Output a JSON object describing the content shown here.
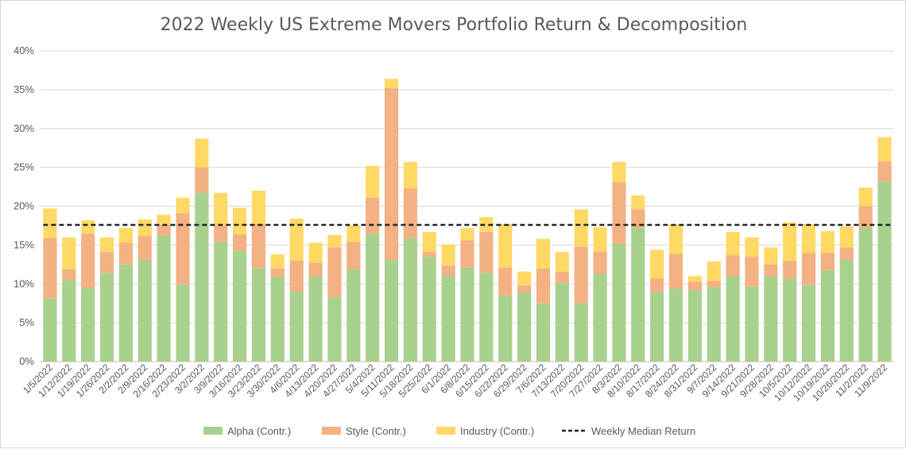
{
  "chart_data": {
    "type": "bar",
    "stacked": true,
    "title": "2022 Weekly US Extreme Movers Portfolio Return & Decomposition",
    "xlabel": "",
    "ylabel": "",
    "ylim": [
      0,
      40
    ],
    "yticks": [
      "0%",
      "5%",
      "10%",
      "15%",
      "20%",
      "25%",
      "30%",
      "35%",
      "40%"
    ],
    "grid": true,
    "legend_position": "bottom",
    "colors": {
      "alpha": "#a9d18e",
      "style": "#f4b183",
      "industry": "#ffd966",
      "median": "#262626"
    },
    "categories": [
      "1/5/2022",
      "1/12/2022",
      "1/19/2022",
      "1/26/2022",
      "2/2/2022",
      "2/9/2022",
      "2/16/2022",
      "2/23/2022",
      "3/2/2022",
      "3/9/2022",
      "3/16/2022",
      "3/23/2022",
      "3/30/2022",
      "4/6/2022",
      "4/13/2022",
      "4/20/2022",
      "4/27/2022",
      "5/4/2022",
      "5/11/2022",
      "5/18/2022",
      "5/25/2022",
      "6/1/2022",
      "6/8/2022",
      "6/15/2022",
      "6/22/2022",
      "6/29/2022",
      "7/6/2022",
      "7/13/2022",
      "7/20/2022",
      "7/27/2022",
      "8/3/2022",
      "8/10/2022",
      "8/17/2022",
      "8/24/2022",
      "8/31/2022",
      "9/7/2022",
      "9/14/2022",
      "9/21/2022",
      "9/28/2022",
      "10/5/2022",
      "10/12/2022",
      "10/19/2022",
      "10/26/2022",
      "11/2/2022",
      "11/9/2022"
    ],
    "series": [
      {
        "name": "Alpha (Contr.)",
        "values": [
          8.1,
          10.5,
          9.5,
          11.4,
          12.5,
          13.1,
          16.2,
          9.9,
          21.7,
          15.4,
          14.3,
          12.0,
          10.9,
          9.0,
          11.0,
          8.3,
          11.9,
          16.5,
          13.1,
          15.9,
          13.5,
          11.0,
          12.1,
          11.4,
          8.5,
          8.9,
          7.5,
          10.1,
          7.5,
          11.3,
          15.2,
          17.2,
          9.0,
          9.4,
          9.2,
          9.6,
          11.0,
          9.7,
          11.0,
          10.7,
          9.9,
          11.8,
          13.1,
          17.2,
          23.2
        ]
      },
      {
        "name": "Style (Contr.)",
        "values": [
          7.8,
          1.4,
          7.0,
          2.7,
          2.8,
          3.1,
          1.4,
          9.2,
          3.3,
          2.1,
          2.1,
          5.7,
          1.1,
          4.0,
          1.7,
          6.4,
          3.5,
          4.6,
          22.1,
          6.4,
          0.6,
          1.4,
          3.5,
          5.3,
          3.6,
          0.9,
          4.5,
          1.5,
          7.3,
          2.9,
          7.9,
          2.4,
          1.7,
          4.5,
          1.1,
          0.8,
          2.7,
          3.8,
          1.5,
          2.3,
          4.1,
          2.2,
          1.6,
          2.8,
          2.6
        ]
      },
      {
        "name": "Industry (Contr.)",
        "values": [
          3.8,
          4.1,
          1.7,
          1.9,
          1.9,
          2.1,
          1.3,
          2.0,
          3.7,
          4.2,
          3.4,
          4.3,
          1.8,
          5.4,
          2.6,
          1.6,
          2.1,
          4.1,
          1.2,
          3.4,
          2.6,
          2.7,
          1.6,
          1.9,
          5.6,
          1.8,
          3.8,
          2.5,
          4.8,
          3.1,
          2.6,
          1.8,
          3.7,
          3.8,
          0.7,
          2.5,
          3.0,
          2.5,
          2.2,
          4.9,
          3.7,
          2.8,
          2.7,
          2.4,
          3.1
        ]
      }
    ],
    "median": {
      "name": "Weekly Median Return",
      "value": 17.6
    }
  }
}
